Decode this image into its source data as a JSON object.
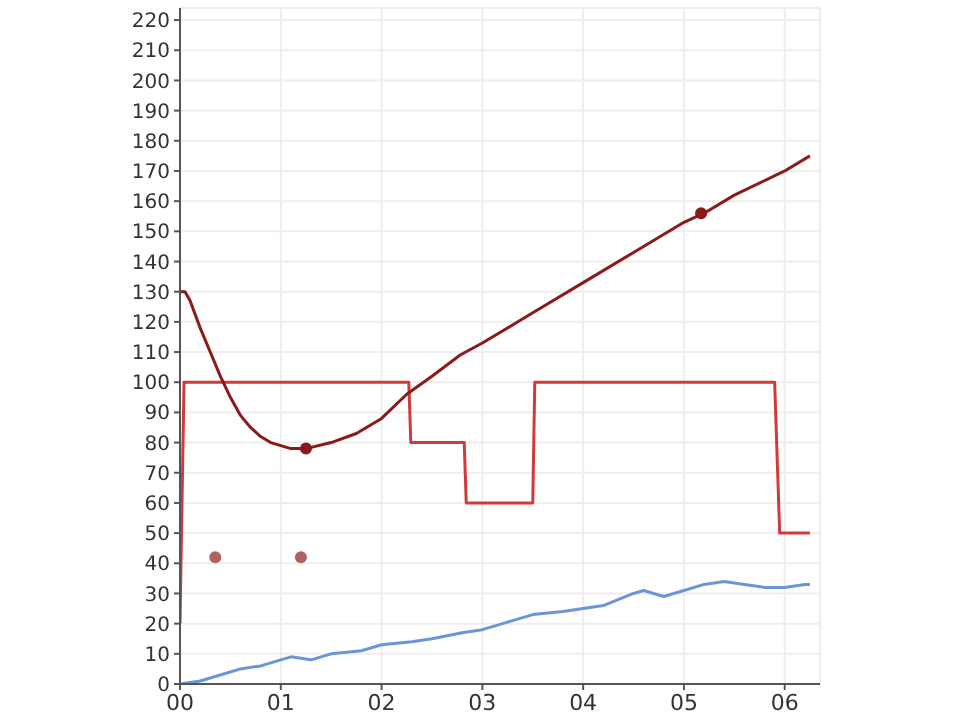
{
  "chart_data": {
    "type": "line",
    "xlim": [
      0,
      6.35
    ],
    "xticks": [
      {
        "value": 0,
        "label": "00"
      },
      {
        "value": 1,
        "label": "01"
      },
      {
        "value": 2,
        "label": "02"
      },
      {
        "value": 3,
        "label": "03"
      },
      {
        "value": 4,
        "label": "04"
      },
      {
        "value": 5,
        "label": "05"
      },
      {
        "value": 6,
        "label": "06"
      }
    ],
    "ylim": [
      0,
      224
    ],
    "yticks": [
      0,
      10,
      20,
      30,
      40,
      50,
      60,
      70,
      80,
      90,
      100,
      110,
      120,
      130,
      140,
      150,
      160,
      170,
      180,
      190,
      200,
      210,
      220
    ],
    "grid": true,
    "line_style": "solid",
    "series": [
      {
        "color": "#d03a3a",
        "marker": "none",
        "x": [
          0,
          0.04,
          2.27,
          2.29,
          2.82,
          2.84,
          3.5,
          3.52,
          5.9,
          5.95,
          6.25
        ],
        "values": [
          20,
          100,
          100,
          80,
          80,
          60,
          60,
          100,
          100,
          50,
          50
        ]
      },
      {
        "color": "#8b1a1a",
        "marker": "none",
        "x": [
          0,
          0.05,
          0.1,
          0.2,
          0.3,
          0.4,
          0.5,
          0.6,
          0.7,
          0.8,
          0.9,
          1.0,
          1.1,
          1.25,
          1.5,
          1.75,
          2.0,
          2.25,
          2.5,
          2.78,
          3.0,
          3.5,
          4.0,
          4.5,
          5.0,
          5.2,
          5.5,
          6.0,
          6.25
        ],
        "values": [
          130,
          130,
          127,
          118,
          110,
          102,
          95,
          89,
          85,
          82,
          80,
          79,
          78,
          78,
          80,
          83,
          88,
          96,
          102,
          109,
          113,
          123,
          133,
          143,
          153,
          156,
          162,
          170,
          175
        ]
      },
      {
        "color": "#6a96d8",
        "marker": "none",
        "x": [
          0,
          0.2,
          0.4,
          0.6,
          0.8,
          1.0,
          1.1,
          1.3,
          1.5,
          1.8,
          2.0,
          2.3,
          2.5,
          2.8,
          3.0,
          3.2,
          3.5,
          3.8,
          4.0,
          4.2,
          4.5,
          4.6,
          4.8,
          5.0,
          5.2,
          5.4,
          5.6,
          5.8,
          6.0,
          6.2,
          6.25
        ],
        "values": [
          0,
          1,
          3,
          5,
          6,
          8,
          9,
          8,
          10,
          11,
          13,
          14,
          15,
          17,
          18,
          20,
          23,
          24,
          25,
          26,
          30,
          31,
          29,
          31,
          33,
          34,
          33,
          32,
          32,
          33,
          33
        ]
      },
      {
        "type": "scatter",
        "color": "#8b1a1a",
        "marker": "circle",
        "x": [
          1.25,
          5.17
        ],
        "values": [
          78,
          156
        ]
      },
      {
        "type": "scatter",
        "color": "#b06060",
        "marker": "circle",
        "x": [
          0.35,
          1.2
        ],
        "values": [
          42,
          42
        ]
      }
    ]
  }
}
